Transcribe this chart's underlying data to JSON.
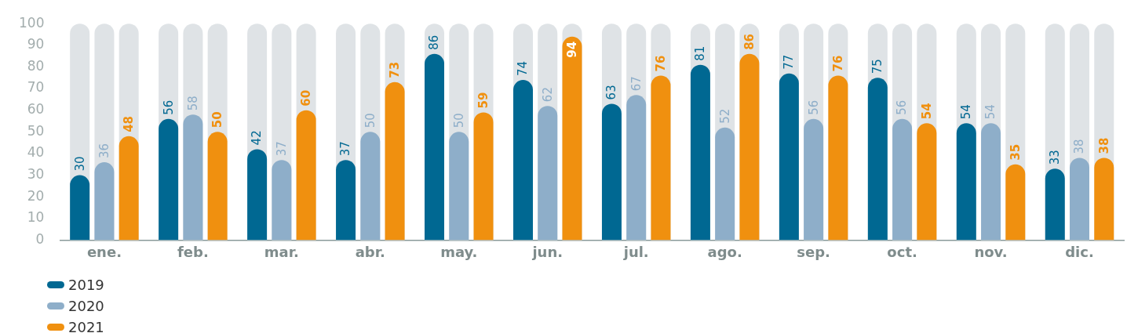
{
  "chart_data": {
    "type": "bar",
    "categories": [
      "ene.",
      "feb.",
      "mar.",
      "abr.",
      "may.",
      "jun.",
      "jul.",
      "ago.",
      "sep.",
      "oct.",
      "nov.",
      "dic."
    ],
    "series": [
      {
        "name": "2019",
        "color": "#006892",
        "values": [
          30,
          56,
          42,
          37,
          86,
          74,
          63,
          81,
          77,
          75,
          54,
          33
        ]
      },
      {
        "name": "2020",
        "color": "#8eaec9",
        "values": [
          36,
          58,
          37,
          50,
          50,
          62,
          67,
          52,
          56,
          56,
          54,
          38
        ]
      },
      {
        "name": "2021",
        "color": "#f0900f",
        "values": [
          48,
          50,
          60,
          73,
          59,
          94,
          76,
          86,
          76,
          54,
          35,
          38
        ]
      }
    ],
    "ylim": [
      0,
      100
    ],
    "yticks": [
      0,
      10,
      20,
      30,
      40,
      50,
      60,
      70,
      80,
      90,
      100
    ],
    "grid": false,
    "legend": "bottom left",
    "data_labels": true
  }
}
